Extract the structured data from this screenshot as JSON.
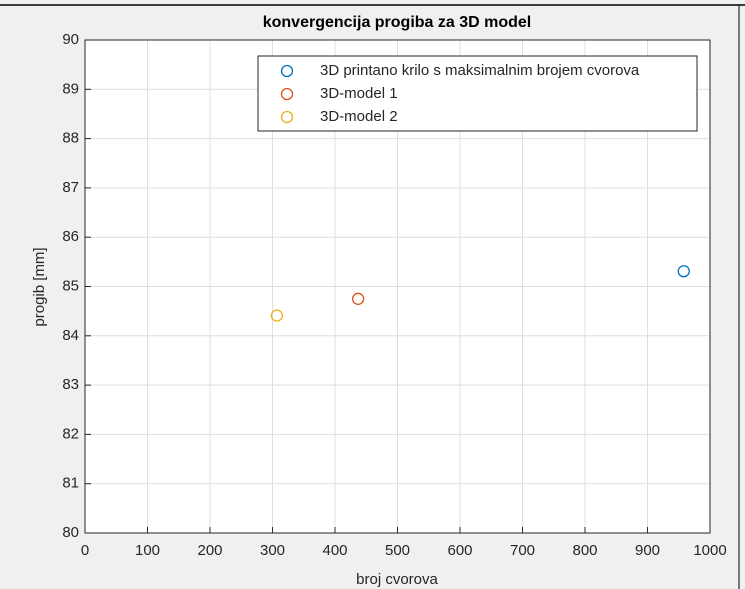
{
  "chart_data": {
    "type": "scatter",
    "title": "konvergencija progiba za 3D model",
    "xlabel": "broj cvorova",
    "ylabel": "progib [mm]",
    "series": [
      {
        "name": "3D printano krilo s maksimalnim brojem cvorova",
        "color": "#0072bd",
        "x": [
          958
        ],
        "values": [
          85.31
        ]
      },
      {
        "name": "3D-model 1",
        "color": "#d95319",
        "x": [
          437
        ],
        "values": [
          84.75
        ]
      },
      {
        "name": "3D-model 2",
        "color": "#edb120",
        "x": [
          307
        ],
        "values": [
          84.41
        ]
      }
    ],
    "xlim": [
      0,
      1000
    ],
    "xticks": [
      0,
      100,
      200,
      300,
      400,
      500,
      600,
      700,
      800,
      900,
      1000
    ],
    "ylim": [
      80,
      90
    ],
    "yticks": [
      80,
      81,
      82,
      83,
      84,
      85,
      86,
      87,
      88,
      89,
      90
    ],
    "grid": true,
    "legend": "northeast"
  }
}
